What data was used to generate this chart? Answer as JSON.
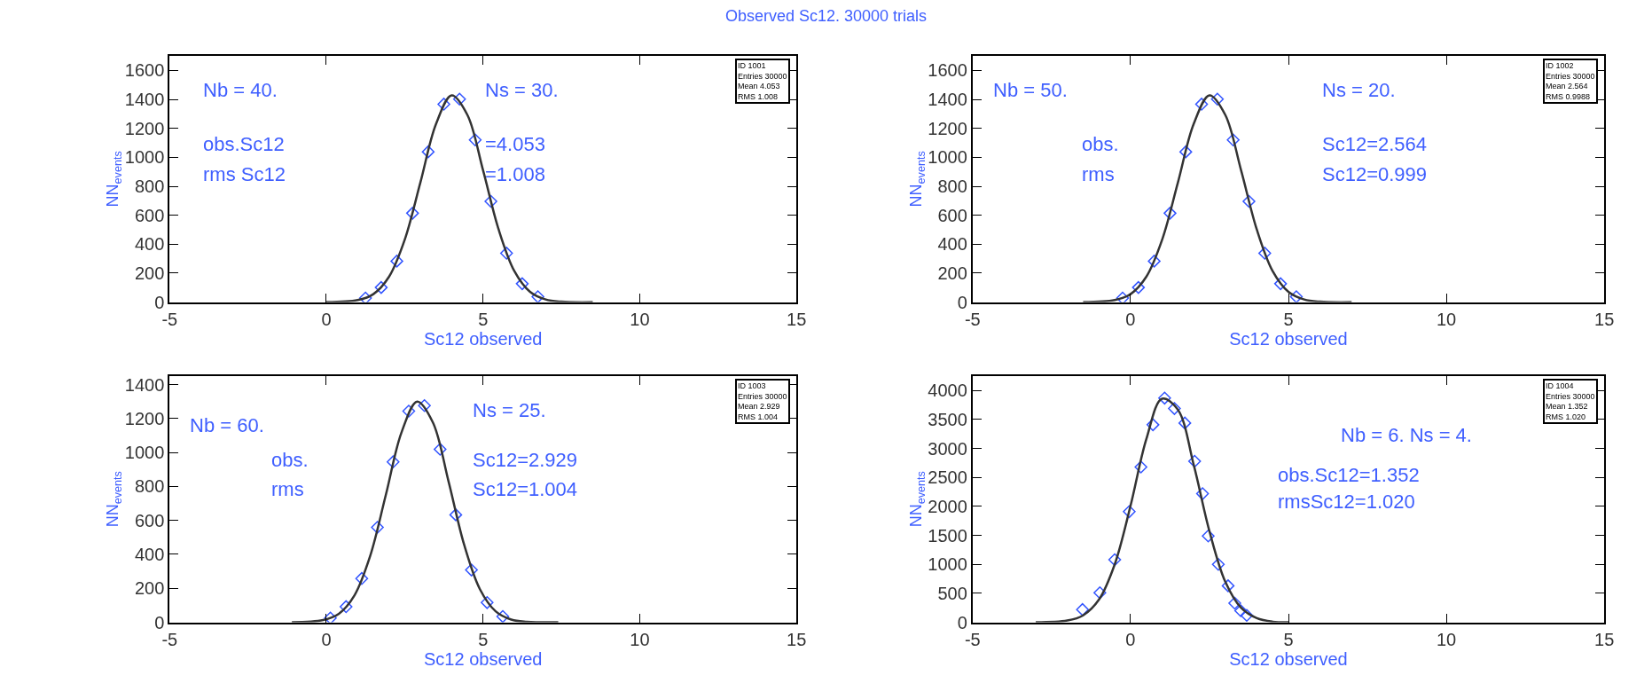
{
  "chart_data": [
    {
      "type": "scatter",
      "title": "Observed Sc12. 30000 trials",
      "xlabel": "Sc12 observed",
      "ylabel": "NN$_{events}$",
      "xlim": [
        -5,
        15
      ],
      "xticks": [
        -5,
        0,
        5,
        10,
        15
      ],
      "ylim": [
        0,
        1700
      ],
      "yticks": [
        0,
        200,
        400,
        600,
        800,
        1000,
        1200,
        1400,
        1600
      ],
      "annotations": [
        "ID 1001\nEntries 30000\nMean 4.053\nRMS 1.008",
        "Nb = 40.",
        "Ns = 30.",
        "obs.Sc12",
        "=4.053",
        "rms Sc12",
        "=1.008"
      ],
      "series": [
        {
          "marker": "diamond",
          "color": "#3355ff",
          "x": [
            1.25,
            1.75,
            2.25,
            2.75,
            3.25,
            3.75,
            4.25,
            4.75,
            5.25,
            5.75,
            6.25,
            6.75
          ],
          "values": [
            28,
            101,
            283,
            614,
            1038,
            1367,
            1402,
            1120,
            696,
            338,
            127,
            37
          ]
        },
        {
          "type": "line",
          "color": "#333333",
          "x": [
            0,
            1.0,
            1.5,
            2.0,
            2.5,
            3.0,
            3.5,
            4.0,
            4.5,
            5.0,
            5.5,
            6.0,
            6.5,
            7.0,
            7.5,
            8.5
          ],
          "values": [
            0,
            14,
            55,
            175,
            430,
            825,
            1230,
            1428,
            1293,
            911,
            500,
            214,
            71,
            18,
            3,
            0
          ]
        }
      ]
    },
    {
      "type": "scatter",
      "xlabel": "Sc12 observed",
      "ylabel": "NN$_{events}$",
      "xlim": [
        -5,
        15
      ],
      "xticks": [
        -5,
        0,
        5,
        10,
        15
      ],
      "ylim": [
        0,
        1700
      ],
      "yticks": [
        0,
        200,
        400,
        600,
        800,
        1000,
        1200,
        1400,
        1600
      ],
      "annotations": [
        "ID 1002\nEntries 30000\nMean 2.564\nRMS 0.9988",
        "Nb = 50.",
        "Ns = 20.",
        "obs.",
        "Sc12=2.564",
        "rms",
        "Sc12=0.999"
      ],
      "series": [
        {
          "marker": "diamond",
          "color": "#3355ff",
          "x": [
            -0.25,
            0.25,
            0.75,
            1.25,
            1.75,
            2.25,
            2.75,
            3.25,
            3.75,
            4.25,
            4.75,
            5.25
          ],
          "values": [
            28,
            101,
            283,
            614,
            1038,
            1367,
            1402,
            1120,
            696,
            338,
            127,
            37
          ]
        },
        {
          "type": "line",
          "color": "#333333",
          "x": [
            -1.5,
            -0.5,
            0,
            0.5,
            1.0,
            1.5,
            2.0,
            2.5,
            3.0,
            3.5,
            4.0,
            4.5,
            5.0,
            5.5,
            6.0,
            7.0
          ],
          "values": [
            0,
            14,
            55,
            175,
            430,
            825,
            1230,
            1428,
            1293,
            911,
            500,
            214,
            71,
            18,
            3,
            0
          ]
        }
      ]
    },
    {
      "type": "scatter",
      "xlabel": "Sc12 observed",
      "ylabel": "NN$_{events}$",
      "xlim": [
        -5,
        15
      ],
      "xticks": [
        -5,
        0,
        5,
        10,
        15
      ],
      "ylim": [
        0,
        1450
      ],
      "yticks": [
        0,
        200,
        400,
        600,
        800,
        1000,
        1200,
        1400
      ],
      "annotations": [
        "ID 1003\nEntries 30000\nMean 2.929\nRMS 1.004",
        "Nb = 60.",
        "Ns = 25.",
        "obs.",
        "Sc12=2.929",
        "rms",
        "Sc12=1.004"
      ],
      "series": [
        {
          "marker": "diamond",
          "color": "#3355ff",
          "x": [
            0.13,
            0.63,
            1.13,
            1.63,
            2.13,
            2.63,
            3.13,
            3.63,
            4.13,
            4.63,
            5.13,
            5.63
          ],
          "values": [
            25,
            92,
            258,
            559,
            945,
            1244,
            1276,
            1019,
            633,
            308,
            116,
            34
          ]
        },
        {
          "type": "line",
          "color": "#333333",
          "x": [
            -1.1,
            -0.1,
            0.4,
            0.9,
            1.4,
            1.9,
            2.4,
            2.9,
            3.4,
            3.9,
            4.4,
            4.9,
            5.4,
            5.9,
            6.4,
            7.4
          ],
          "values": [
            0,
            13,
            50,
            159,
            391,
            751,
            1119,
            1300,
            1177,
            829,
            455,
            195,
            65,
            16,
            3,
            0
          ]
        }
      ]
    },
    {
      "type": "scatter",
      "xlabel": "Sc12 observed",
      "ylabel": "NN$_{events}$",
      "xlim": [
        -5,
        15
      ],
      "xticks": [
        -5,
        0,
        5,
        10,
        15
      ],
      "ylim": [
        0,
        4250
      ],
      "yticks": [
        0,
        500,
        1000,
        1500,
        2000,
        2500,
        3000,
        3500,
        4000
      ],
      "annotations": [
        "ID 1004\nEntries 30000\nMean 1.352\nRMS 1.020",
        "Nb = 6. Ns = 4.",
        "obs.Sc12=1.352",
        "rmsSc12=1.020"
      ],
      "series": [
        {
          "marker": "diamond",
          "color": "#3355ff",
          "x": [
            -1.52,
            -0.97,
            -0.5,
            -0.04,
            0.33,
            0.71,
            1.08,
            1.39,
            1.72,
            2.03,
            2.28,
            2.46,
            2.78,
            3.09,
            3.3,
            3.49,
            3.68
          ],
          "values": [
            220,
            510,
            1080,
            1910,
            2680,
            3410,
            3870,
            3690,
            3440,
            2780,
            2220,
            1490,
            1000,
            630,
            330,
            200,
            120
          ]
        },
        {
          "type": "line",
          "color": "#333333",
          "x": [
            -3,
            -2,
            -1.5,
            -1,
            -0.5,
            0,
            0.5,
            1,
            1.5,
            2,
            2.5,
            3,
            3.5,
            4,
            4.5,
            5
          ],
          "values": [
            0,
            30,
            120,
            390,
            1000,
            2010,
            3160,
            3860,
            3670,
            2720,
            1570,
            700,
            250,
            70,
            10,
            0
          ]
        }
      ]
    }
  ]
}
